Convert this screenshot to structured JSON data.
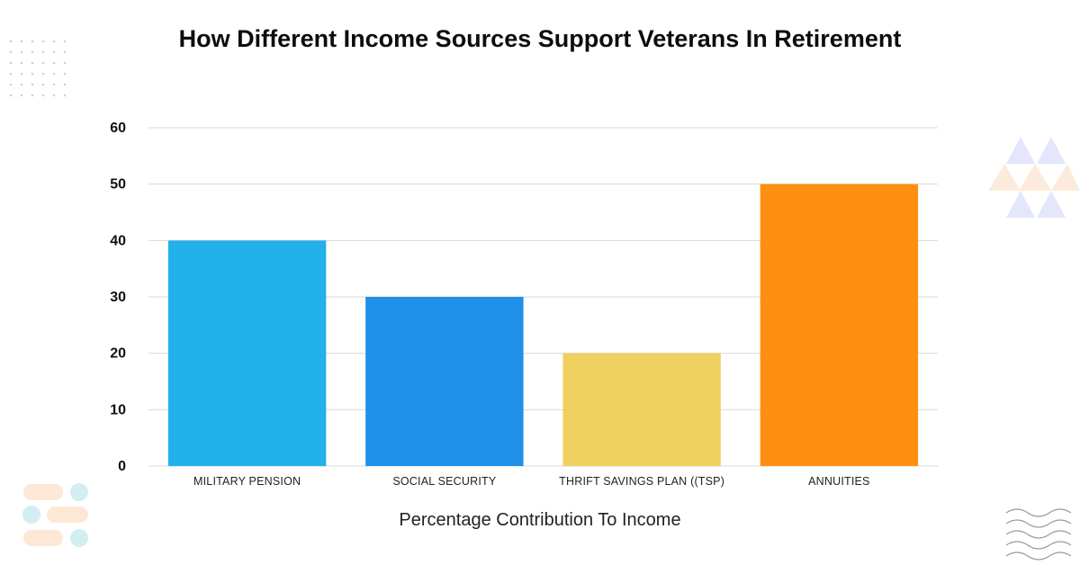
{
  "chart_data": {
    "type": "bar",
    "title": "How Different Income Sources Support Veterans In Retirement",
    "xlabel": "Percentage Contribution To Income",
    "ylabel": "",
    "ylim": [
      0,
      60
    ],
    "yticks": [
      0,
      10,
      20,
      30,
      40,
      50,
      60
    ],
    "grid": true,
    "categories": [
      "MILITARY PENSION",
      "SOCIAL SECURITY",
      "THRIFT SAVINGS PLAN ((TSP)",
      "ANNUITIES"
    ],
    "values": [
      40,
      30,
      20,
      50
    ],
    "colors": [
      "#22b1ea",
      "#2090e8",
      "#efd060",
      "#ff8f10"
    ]
  }
}
